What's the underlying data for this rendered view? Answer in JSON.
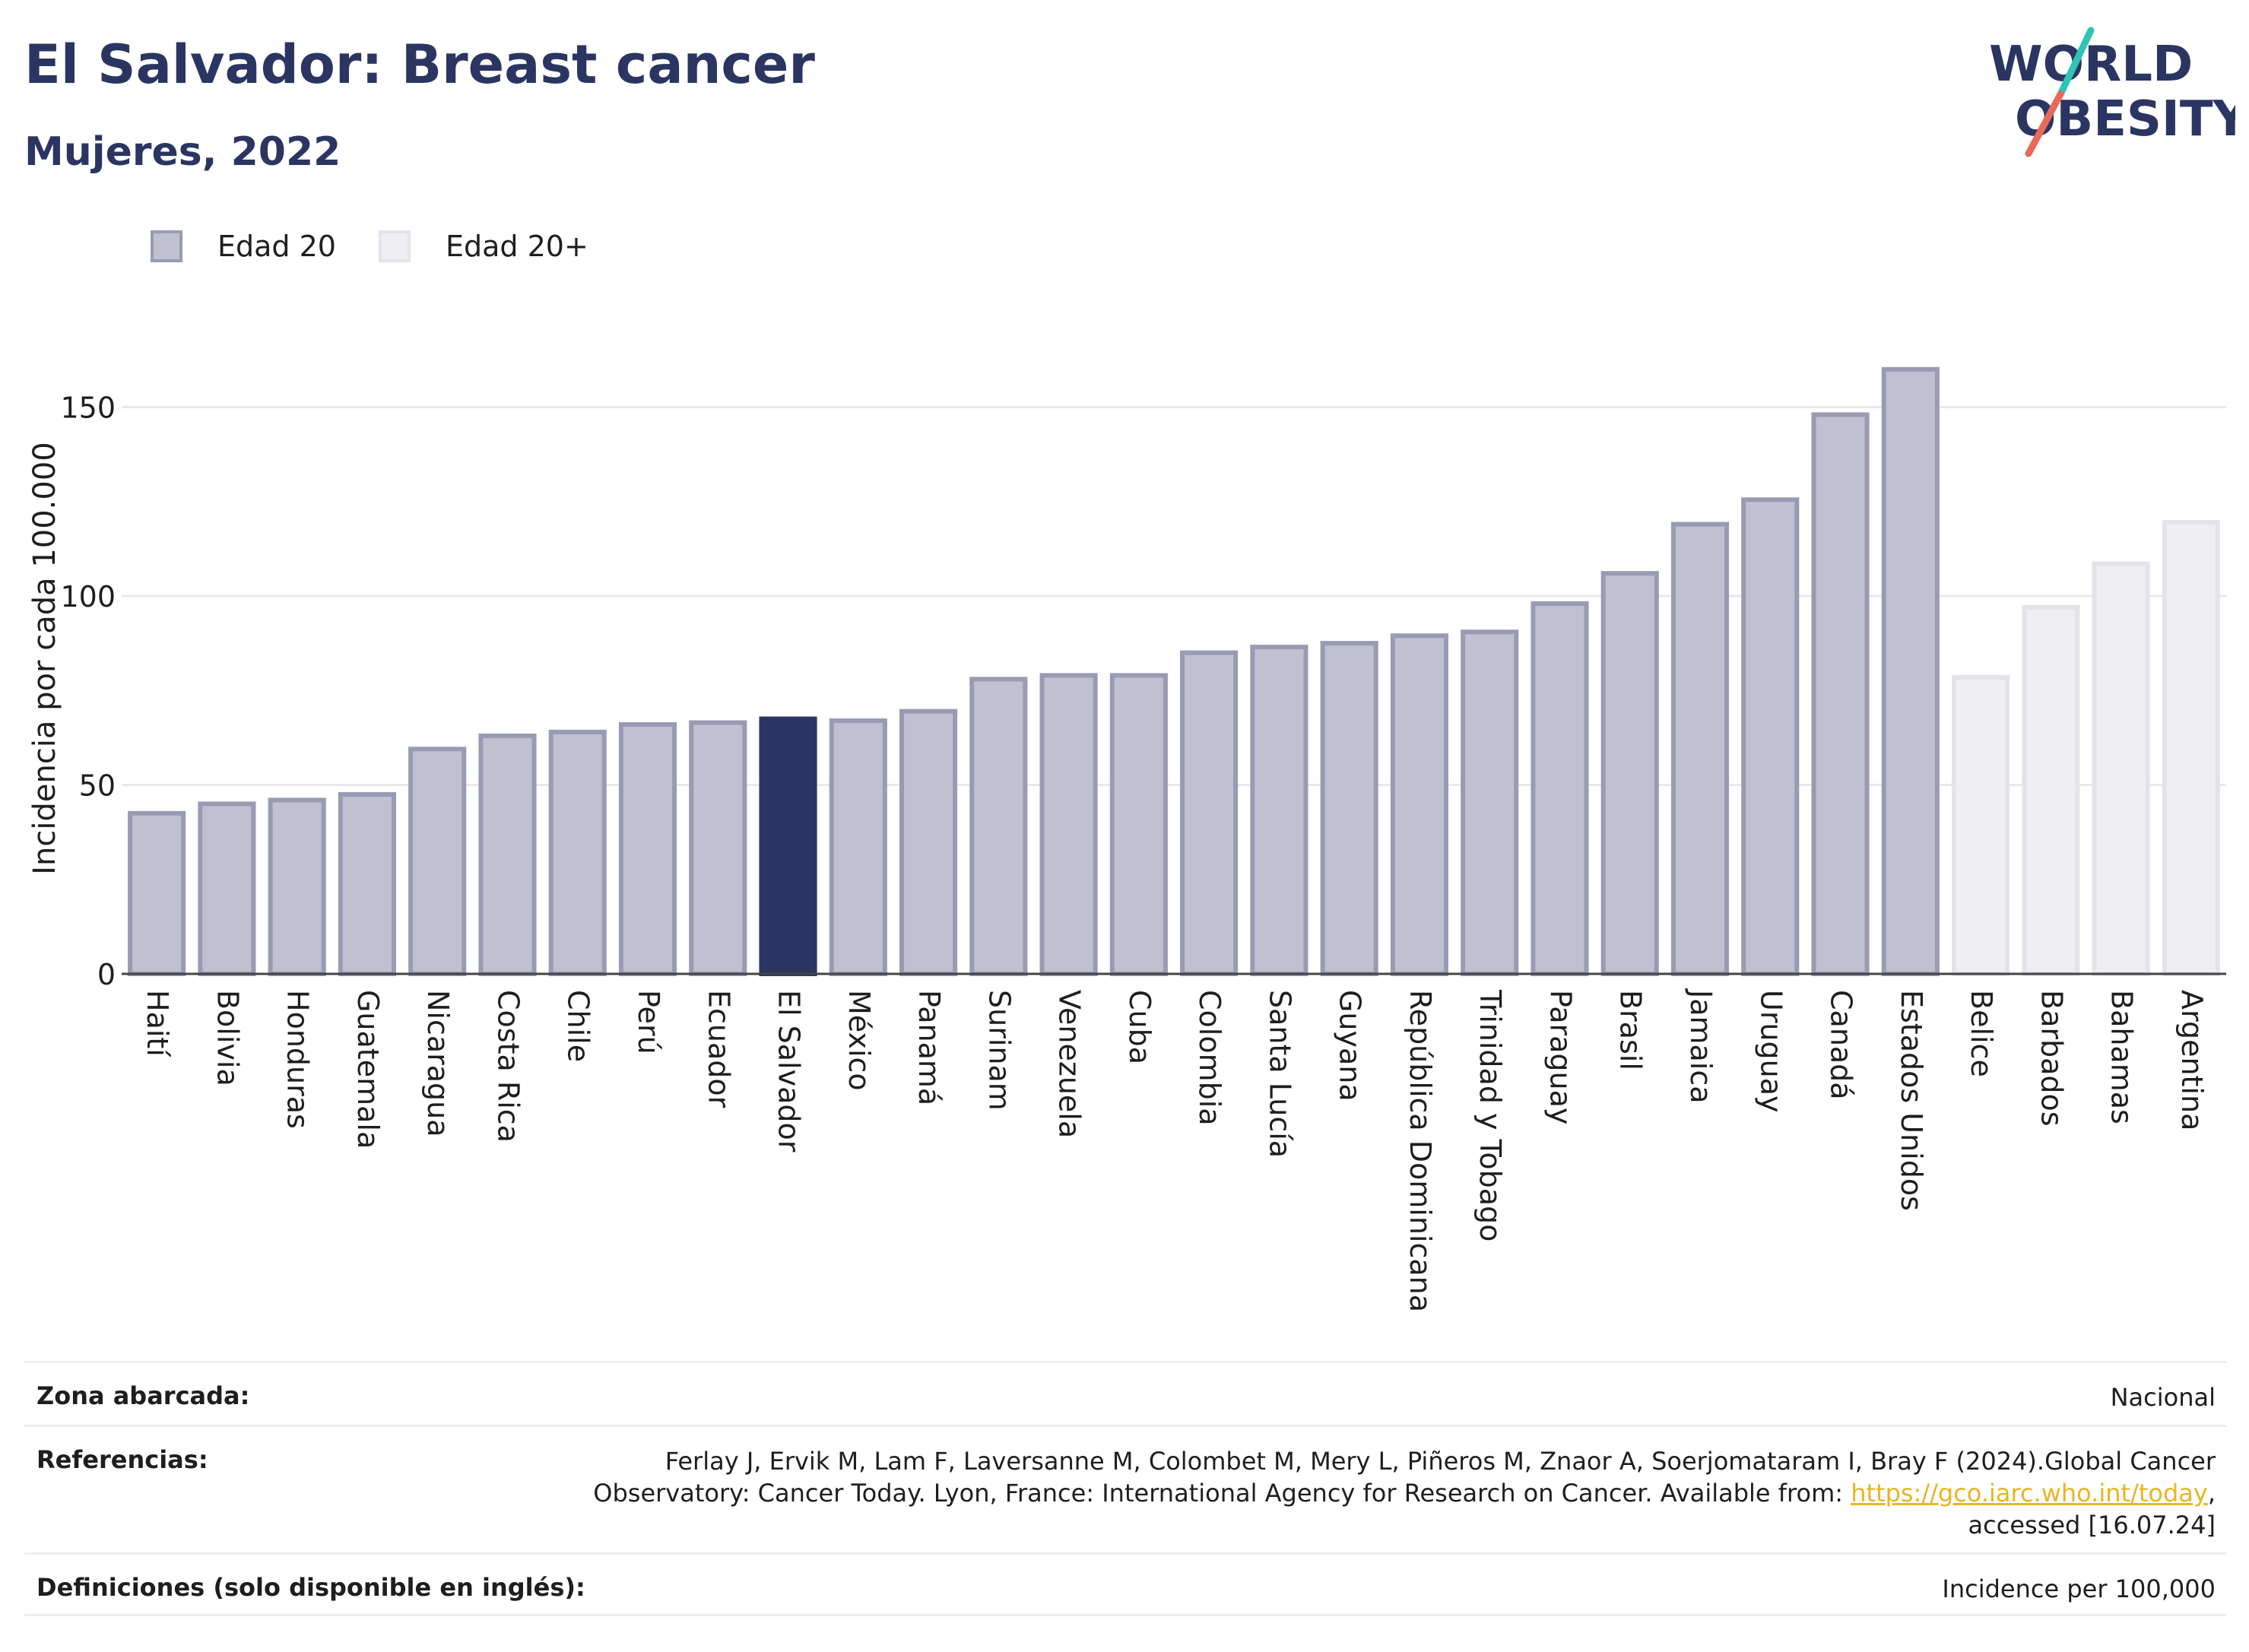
{
  "title": "El Salvador: Breast cancer",
  "subtitle": "Mujeres, 2022",
  "logo": {
    "line1": "WORLD",
    "line2": "OBESITY"
  },
  "colors": {
    "bar_fill": "#bfc1d0",
    "bar_border": "#989bb3",
    "highlight_fill": "#2b3561",
    "light_fill": "#eeeef3",
    "light_border": "#e3e3ea",
    "title": "#2b3561",
    "logo_slash_top": "#2ec4b6",
    "logo_slash_bottom": "#e8695a",
    "link": "#e7b625"
  },
  "legend": {
    "items": [
      {
        "label": "Edad 20",
        "style": "main"
      },
      {
        "label": "Edad 20+",
        "style": "light"
      }
    ]
  },
  "chart_data": {
    "type": "bar",
    "title": "El Salvador: Breast cancer",
    "subtitle": "Mujeres, 2022",
    "xlabel": "",
    "ylabel": "Incidencia por cada 100.000",
    "ylim": [
      0,
      170
    ],
    "yticks": [
      0,
      50,
      100,
      150
    ],
    "grid": true,
    "legend_position": "top-left",
    "highlight": "El Salvador",
    "categories": [
      "Haití",
      "Bolivia",
      "Honduras",
      "Guatemala",
      "Nicaragua",
      "Costa Rica",
      "Chile",
      "Perú",
      "Ecuador",
      "El Salvador",
      "México",
      "Panamá",
      "Surinam",
      "Venezuela",
      "Cuba",
      "Colombia",
      "Santa Lucía",
      "Guyana",
      "República Dominicana",
      "Trinidad y Tobago",
      "Paraguay",
      "Brasil",
      "Jamaica",
      "Uruguay",
      "Canadá",
      "Estados Unidos",
      "Belice",
      "Barbados",
      "Bahamas",
      "Argentina"
    ],
    "values": [
      42.5,
      45,
      46,
      47.5,
      59.5,
      63,
      64,
      66,
      66.5,
      67.5,
      67,
      69.5,
      78,
      79,
      79,
      85,
      86.5,
      87.5,
      89.5,
      90.5,
      98,
      106,
      119,
      125.5,
      148,
      160,
      78.5,
      97,
      108.5,
      119.5
    ],
    "series_of_category": [
      "Edad 20",
      "Edad 20",
      "Edad 20",
      "Edad 20",
      "Edad 20",
      "Edad 20",
      "Edad 20",
      "Edad 20",
      "Edad 20",
      "Edad 20",
      "Edad 20",
      "Edad 20",
      "Edad 20",
      "Edad 20",
      "Edad 20",
      "Edad 20",
      "Edad 20",
      "Edad 20",
      "Edad 20",
      "Edad 20",
      "Edad 20",
      "Edad 20",
      "Edad 20",
      "Edad 20",
      "Edad 20",
      "Edad 20",
      "Edad 20+",
      "Edad 20+",
      "Edad 20+",
      "Edad 20+"
    ]
  },
  "footer": {
    "zona_label": "Zona abarcada:",
    "zona_value": "Nacional",
    "ref_label": "Referencias:",
    "ref_line1": "Ferlay J, Ervik M, Lam F, Laversanne M, Colombet M, Mery L, Piñeros M, Znaor A, Soerjomataram I, Bray F (2024).Global Cancer",
    "ref_line2_pre": "Observatory: Cancer Today. Lyon, France: International Agency for Research on Cancer. Available from: ",
    "ref_link": "https://gco.iarc.who.int/today",
    "ref_line2_post": ",",
    "ref_line3": "accessed [16.07.24]",
    "def_label": "Definiciones (solo disponible en inglés):",
    "def_value": "Incidence per 100,000"
  }
}
